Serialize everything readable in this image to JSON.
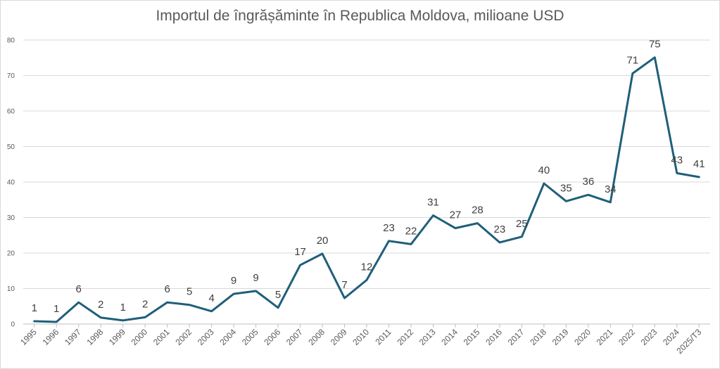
{
  "chart_data": {
    "type": "line",
    "title": "Importul de îngrășăminte în Republica Moldova, milioane USD",
    "xlabel": "",
    "ylabel": "",
    "ylim": [
      0,
      80
    ],
    "yticks": [
      "0",
      "10",
      "20",
      "30",
      "40",
      "50",
      "60",
      "70",
      "80"
    ],
    "grid": true,
    "legend": "none",
    "line_color": "#1f5f7a",
    "categories": [
      "1995",
      "1996",
      "1997",
      "1998",
      "1999",
      "2000",
      "2001",
      "2002",
      "2003",
      "2004",
      "2005",
      "2006",
      "2007",
      "2008",
      "2009",
      "2010",
      "2011",
      "2012",
      "2013",
      "2014",
      "2015",
      "2016",
      "2017",
      "2018",
      "2019",
      "2020",
      "2021",
      "2022",
      "2023",
      "2024",
      "2025/T3"
    ],
    "values": [
      0.8,
      0.6,
      6.1,
      1.8,
      1.0,
      1.9,
      6.1,
      5.4,
      3.6,
      8.5,
      9.3,
      4.6,
      16.6,
      19.8,
      7.3,
      12.4,
      23.4,
      22.5,
      30.6,
      27.0,
      28.4,
      23.0,
      24.6,
      39.6,
      34.6,
      36.4,
      34.3,
      70.6,
      75.1,
      42.5,
      41.4
    ],
    "data_labels": [
      "1",
      "1",
      "6",
      "2",
      "1",
      "2",
      "6",
      "5",
      "4",
      "9",
      "9",
      "5",
      "17",
      "20",
      "7",
      "12",
      "23",
      "22",
      "31",
      "27",
      "28",
      "23",
      "25",
      "40",
      "35",
      "36",
      "34",
      "71",
      "75",
      "43",
      "41"
    ]
  }
}
